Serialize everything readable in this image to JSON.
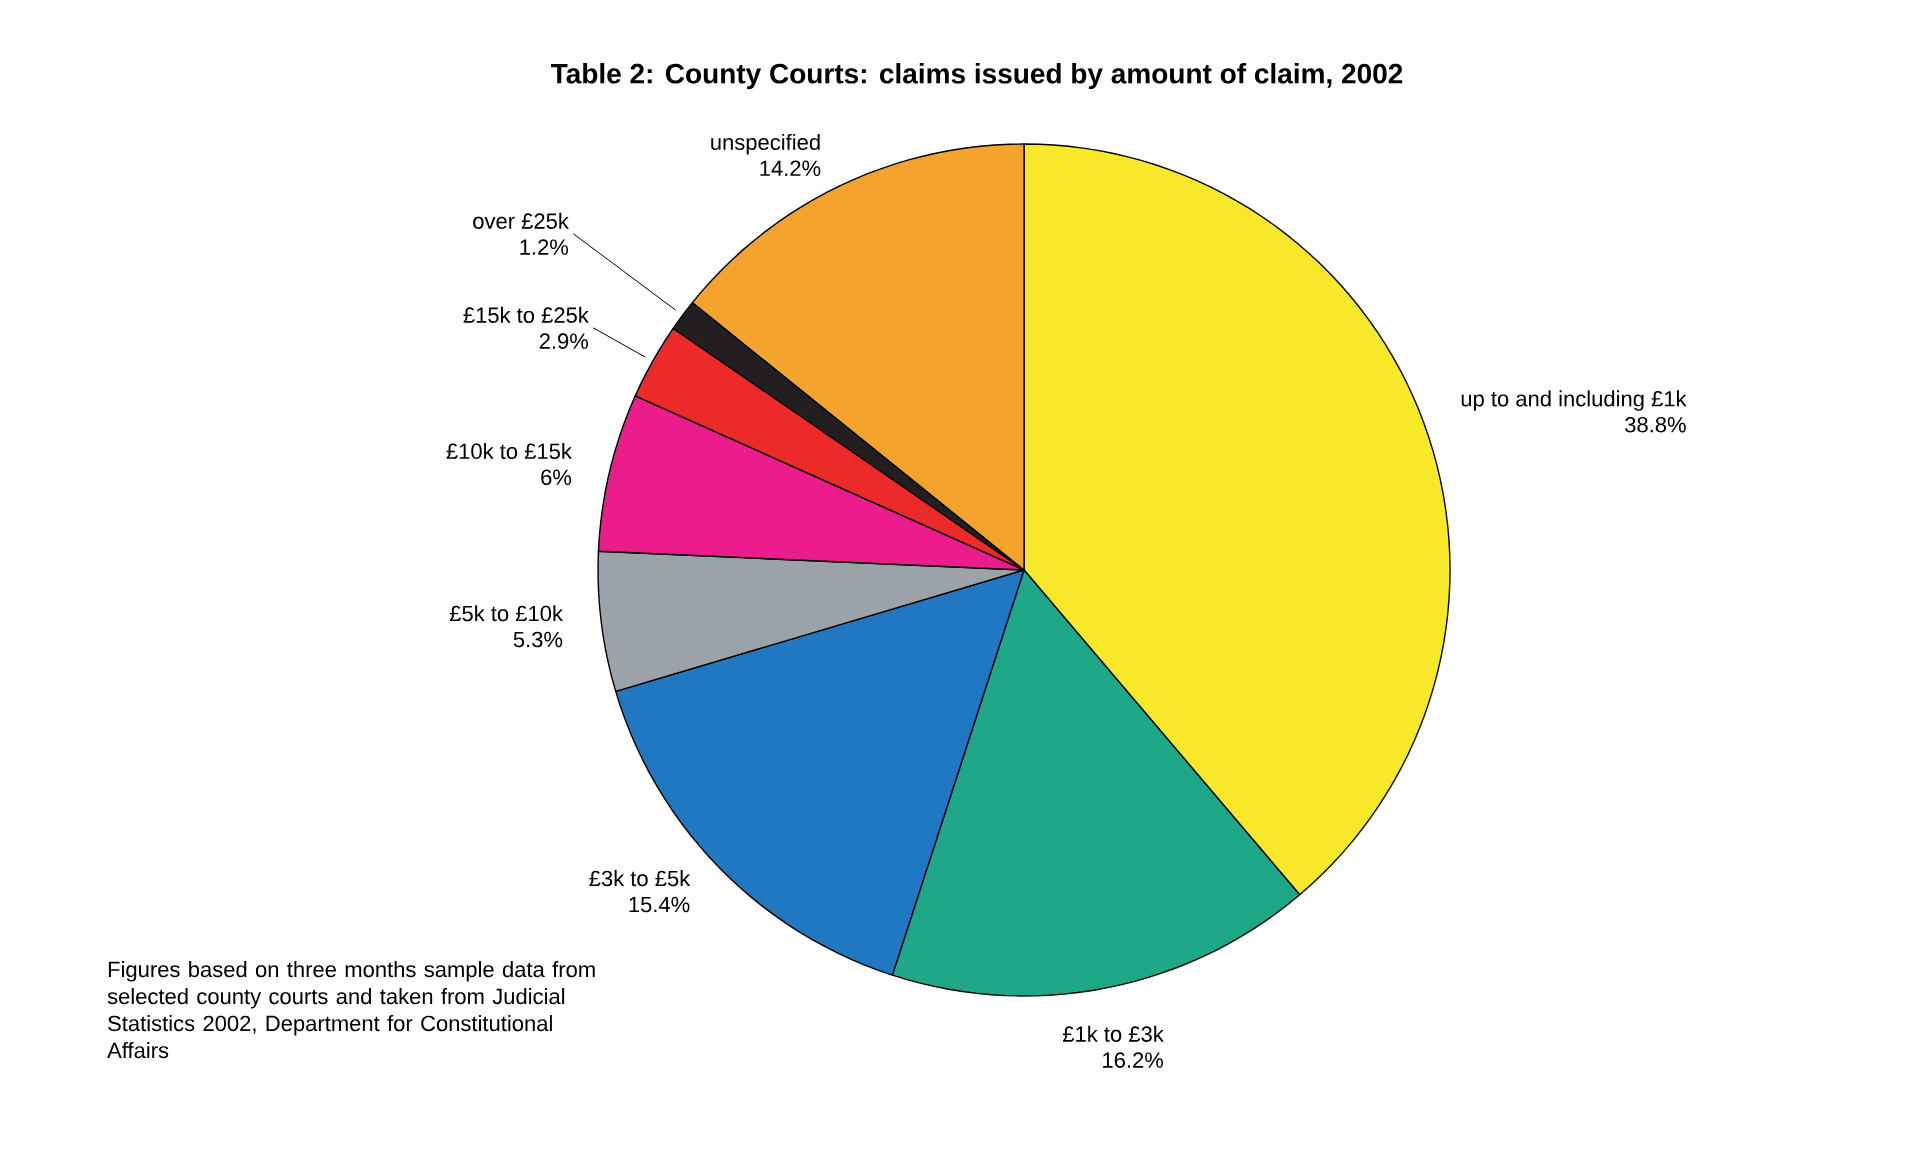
{
  "chart_data": {
    "type": "pie",
    "title": "Table 2: County Courts: claims issued by amount of claim, 2002",
    "categories": [
      "up to and including £1k",
      "£1k to £3k",
      "£3k to £5k",
      "£5k to £10k",
      "£10k to £15k",
      "£15k to £25k",
      "over £25k",
      "unspecified"
    ],
    "values": [
      38.8,
      16.2,
      15.4,
      5.3,
      6,
      2.9,
      1.2,
      14.2
    ],
    "value_labels": [
      "38.8%",
      "16.2%",
      "15.4%",
      "5.3%",
      "6%",
      "2.9%",
      "1.2%",
      "14.2%"
    ],
    "colors": [
      "#f7e92a",
      "#1fa887",
      "#1f78c1",
      "#9ca3a8",
      "#eb1c8c",
      "#ed2a2a",
      "#231f20",
      "#f4a42d"
    ],
    "annotations": [
      "Figures based on three months sample data from selected county courts and taken from Judicial Statistics 2002, Department for Constitutional Affairs"
    ]
  }
}
